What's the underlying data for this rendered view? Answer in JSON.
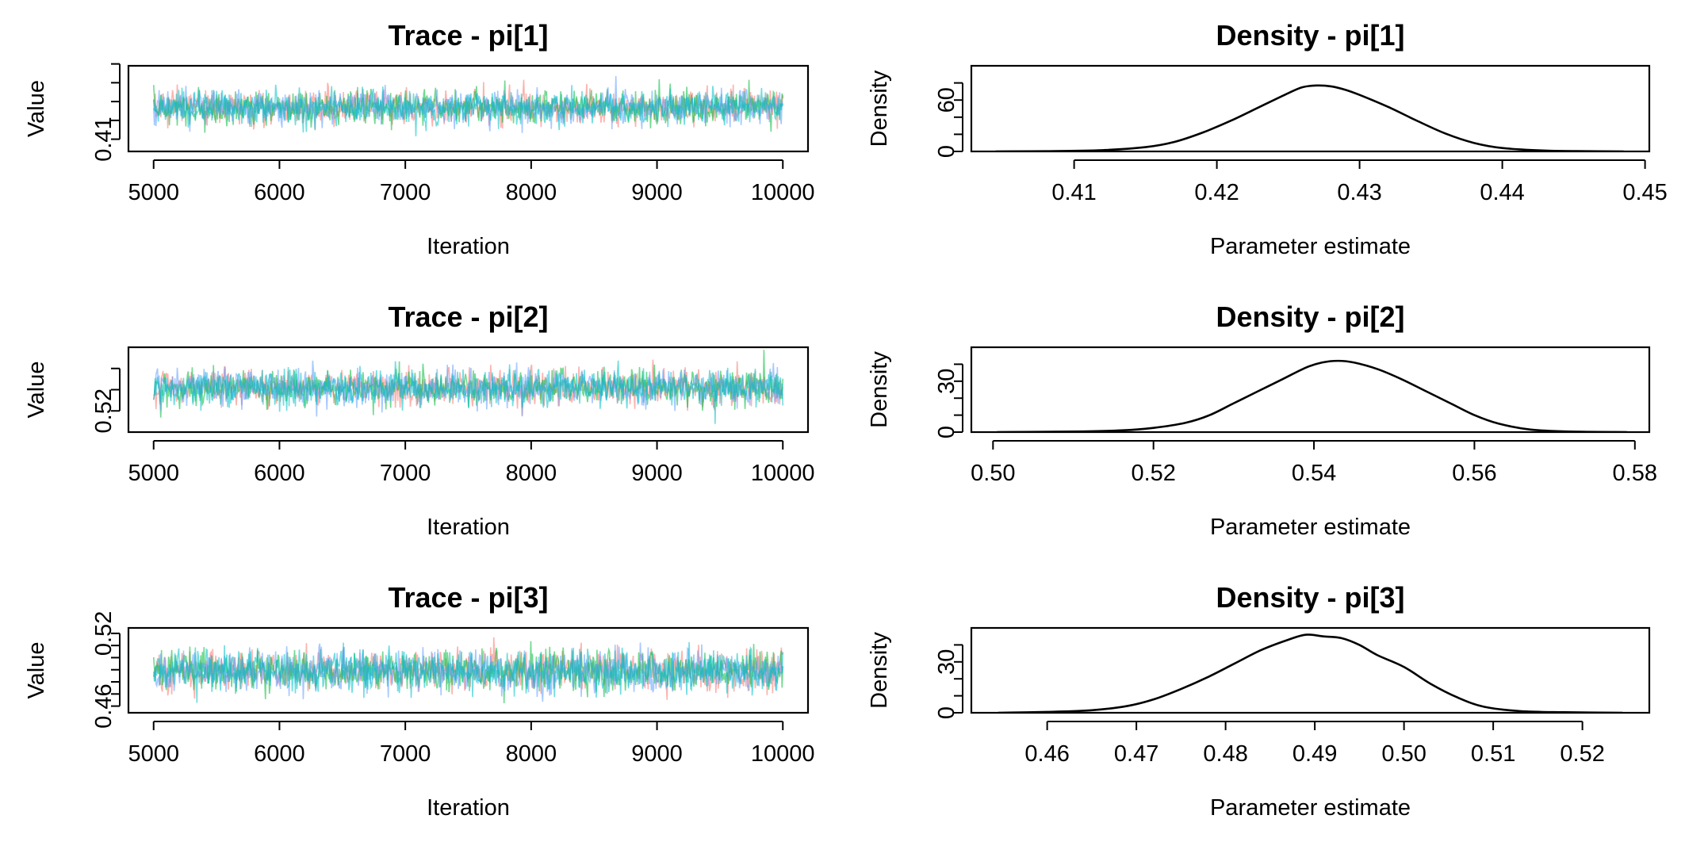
{
  "colors": {
    "chain1": "#F8766D",
    "chain2": "#00BA38",
    "chain3": "#619CFF",
    "chain4": "#00BFC4",
    "density_line": "#000000",
    "baseline": "#BEBEBE"
  },
  "chart_data": [
    {
      "type": "line",
      "title": "Trace - pi[1]",
      "xlabel": "Iteration",
      "ylabel": "Value",
      "xlim": [
        4800,
        10200
      ],
      "ylim": [
        0.4035,
        0.449
      ],
      "x_ticks": [
        5000,
        6000,
        7000,
        8000,
        9000,
        10000
      ],
      "y_ticks": [
        0.41,
        0.42,
        0.43,
        0.44,
        0.45
      ],
      "y_tick_labels": [
        "0.41",
        "",
        "",
        "",
        ""
      ],
      "trace": {
        "x_start": 5000,
        "x_end": 10000,
        "mean": 0.427,
        "sd": 0.0045,
        "min": 0.408,
        "max": 0.447
      },
      "series": [
        {
          "color": "#F8766D"
        },
        {
          "color": "#00BA38"
        },
        {
          "color": "#619CFF"
        },
        {
          "color": "#00BFC4"
        }
      ]
    },
    {
      "type": "line",
      "title": "Density - pi[1]",
      "xlabel": "Parameter estimate",
      "ylabel": "Density",
      "xlim": [
        0.4028,
        0.4503
      ],
      "ylim": [
        0,
        100
      ],
      "x_ticks": [
        0.41,
        0.42,
        0.43,
        0.44,
        0.45
      ],
      "x_tick_labels": [
        "0.41",
        "0.42",
        "0.43",
        "0.44",
        "0.45"
      ],
      "y_ticks": [
        0,
        20,
        40,
        60,
        80
      ],
      "y_tick_labels": [
        "0",
        "",
        "",
        "60",
        ""
      ],
      "series": [
        {
          "x": [
            0.4045,
            0.408,
            0.412,
            0.415,
            0.417,
            0.419,
            0.421,
            0.423,
            0.425,
            0.426,
            0.427,
            0.428,
            0.429,
            0.43,
            0.432,
            0.434,
            0.436,
            0.438,
            0.44,
            0.443,
            0.446,
            0.4485
          ],
          "y": [
            0,
            0.3,
            1.5,
            5,
            11,
            22,
            36,
            52,
            68,
            75,
            77,
            76,
            72,
            66,
            52,
            36,
            21,
            10,
            4,
            1,
            0.3,
            0
          ]
        }
      ]
    },
    {
      "type": "line",
      "title": "Trace - pi[2]",
      "xlabel": "Iteration",
      "ylabel": "Value",
      "xlim": [
        4800,
        10200
      ],
      "ylim": [
        0.5,
        0.58
      ],
      "x_ticks": [
        5000,
        6000,
        7000,
        8000,
        9000,
        10000
      ],
      "y_ticks": [
        0.52,
        0.54,
        0.56
      ],
      "y_tick_labels": [
        "0.52",
        "",
        ""
      ],
      "trace": {
        "x_start": 5000,
        "x_end": 10000,
        "mean": 0.542,
        "sd": 0.0085,
        "min": 0.506,
        "max": 0.579
      },
      "series": [
        {
          "color": "#F8766D"
        },
        {
          "color": "#00BA38"
        },
        {
          "color": "#619CFF"
        },
        {
          "color": "#00BFC4"
        }
      ]
    },
    {
      "type": "line",
      "title": "Density - pi[2]",
      "xlabel": "Parameter estimate",
      "ylabel": "Density",
      "xlim": [
        0.4973,
        0.5818
      ],
      "ylim": [
        0,
        50
      ],
      "x_ticks": [
        0.5,
        0.52,
        0.54,
        0.56,
        0.58
      ],
      "x_tick_labels": [
        "0.50",
        "0.52",
        "0.54",
        "0.56",
        "0.58"
      ],
      "y_ticks": [
        0,
        10,
        20,
        30,
        40
      ],
      "y_tick_labels": [
        "0",
        "",
        "",
        "30",
        ""
      ],
      "series": [
        {
          "x": [
            0.5005,
            0.51,
            0.516,
            0.52,
            0.524,
            0.527,
            0.53,
            0.533,
            0.536,
            0.539,
            0.541,
            0.543,
            0.545,
            0.548,
            0.551,
            0.554,
            0.557,
            0.56,
            0.563,
            0.567,
            0.572,
            0.579
          ],
          "y": [
            0,
            0.3,
            1,
            2.5,
            5.5,
            10,
            17,
            24,
            31,
            38,
            41,
            42,
            41,
            37,
            31,
            24,
            17,
            10,
            5,
            1.5,
            0.3,
            0
          ]
        }
      ]
    },
    {
      "type": "line",
      "title": "Trace - pi[3]",
      "xlabel": "Iteration",
      "ylabel": "Value",
      "xlim": [
        4800,
        10200
      ],
      "ylim": [
        0.4545,
        0.5245
      ],
      "x_ticks": [
        5000,
        6000,
        7000,
        8000,
        9000,
        10000
      ],
      "y_ticks": [
        0.46,
        0.47,
        0.48,
        0.49,
        0.5,
        0.51,
        0.52
      ],
      "y_tick_labels": [
        "0.46",
        "",
        "",
        "",
        "",
        "",
        "0.52"
      ],
      "trace": {
        "x_start": 5000,
        "x_end": 10000,
        "mean": 0.489,
        "sd": 0.0085,
        "min": 0.456,
        "max": 0.524
      },
      "series": [
        {
          "color": "#F8766D"
        },
        {
          "color": "#00BA38"
        },
        {
          "color": "#619CFF"
        },
        {
          "color": "#00BFC4"
        }
      ]
    },
    {
      "type": "line",
      "title": "Density - pi[3]",
      "xlabel": "Parameter estimate",
      "ylabel": "Density",
      "xlim": [
        0.4515,
        0.5275
      ],
      "ylim": [
        0,
        50
      ],
      "x_ticks": [
        0.46,
        0.47,
        0.48,
        0.49,
        0.5,
        0.51,
        0.52
      ],
      "x_tick_labels": [
        "0.46",
        "0.47",
        "0.48",
        "0.49",
        "0.50",
        "0.51",
        "0.52"
      ],
      "y_ticks": [
        0,
        10,
        20,
        30,
        40
      ],
      "y_tick_labels": [
        "0",
        "",
        "",
        "30",
        ""
      ],
      "series": [
        {
          "x": [
            0.4545,
            0.46,
            0.465,
            0.469,
            0.472,
            0.475,
            0.478,
            0.481,
            0.484,
            0.487,
            0.489,
            0.491,
            0.493,
            0.495,
            0.497,
            0.5,
            0.503,
            0.506,
            0.509,
            0.513,
            0.518,
            0.5245
          ],
          "y": [
            0,
            0.5,
            1.5,
            4,
            8,
            14,
            21,
            29,
            37,
            43,
            46,
            45,
            44,
            40,
            34,
            27,
            17,
            9,
            3.5,
            1,
            0.3,
            0
          ]
        }
      ]
    }
  ]
}
